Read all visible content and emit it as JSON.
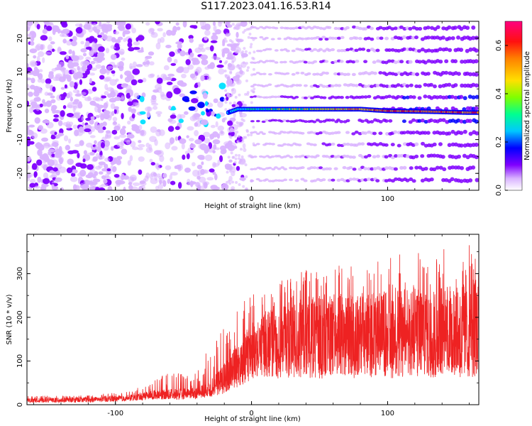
{
  "title": "S117.2023.041.16.53.R14",
  "chart_data": [
    {
      "type": "heatmap",
      "xlabel": "Height of straight line (km)",
      "ylabel": "Frequency (Hz)",
      "xlim": [
        -165,
        167
      ],
      "ylim": [
        -25,
        25
      ],
      "xticks": [
        -100,
        0,
        100
      ],
      "yticks": [
        -20,
        -10,
        0,
        10,
        20
      ],
      "colorbar": {
        "label": "Normalized spectral amplitude",
        "range": [
          0.0,
          0.7
        ],
        "ticks": [
          0.0,
          0.2,
          0.4,
          0.6
        ],
        "colormap": [
          "#ffffff",
          "#d9b3ff",
          "#8000ff",
          "#0000ff",
          "#00e0ff",
          "#00ff80",
          "#c0ff00",
          "#ffe000",
          "#ff8000",
          "#ff0000",
          "#ff0080"
        ]
      },
      "signal_line": {
        "description_points": [
          [
            -17,
            -2
          ],
          [
            -10,
            -1
          ],
          [
            0,
            -1
          ],
          [
            20,
            -1
          ],
          [
            50,
            -1
          ],
          [
            80,
            -1
          ],
          [
            100,
            -1.5
          ],
          [
            130,
            -1.7
          ],
          [
            160,
            -2
          ]
        ],
        "peak_amplitude": 0.6
      },
      "harmonic_bands_hz": [
        23,
        20,
        16.5,
        13,
        9.5,
        6,
        2.5,
        -1,
        -4.5,
        -8,
        -11.5,
        -15,
        -18.5,
        -22
      ],
      "harmonic_band_start_km": 0,
      "noise_region_km": [
        -165,
        -15
      ]
    },
    {
      "type": "line",
      "xlabel": "Height of straight line (km)",
      "ylabel": "SNR (10 * v/v)",
      "xlim": [
        -165,
        167
      ],
      "ylim": [
        0,
        390
      ],
      "xticks": [
        -100,
        0,
        100
      ],
      "yticks": [
        0,
        100,
        200,
        300
      ],
      "grid": false,
      "series": [
        {
          "color": "#ee2222",
          "envelope": {
            "x": [
              -165,
              -120,
              -90,
              -80,
              -70,
              -60,
              -50,
              -40,
              -30,
              -20,
              -10,
              0,
              10,
              20,
              30,
              40,
              60,
              80,
              100,
              120,
              140,
              167
            ],
            "low": [
              5,
              5,
              8,
              10,
              12,
              12,
              12,
              14,
              18,
              25,
              40,
              55,
              60,
              60,
              60,
              60,
              60,
              60,
              60,
              60,
              60,
              60
            ],
            "mid": [
              12,
              14,
              18,
              22,
              28,
              30,
              30,
              32,
              45,
              75,
              120,
              150,
              170,
              185,
              195,
              195,
              200,
              200,
              205,
              210,
              210,
              215
            ],
            "high": [
              20,
              22,
              30,
              45,
              60,
              75,
              70,
              80,
              140,
              200,
              240,
              250,
              270,
              280,
              300,
              310,
              320,
              330,
              340,
              350,
              360,
              370
            ]
          }
        }
      ]
    }
  ]
}
